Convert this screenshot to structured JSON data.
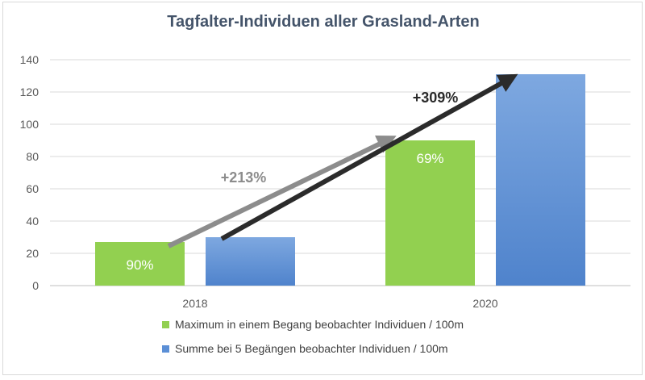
{
  "chart_data": {
    "type": "bar",
    "title": "Tagfalter-Individuen aller Grasland-Arten",
    "categories": [
      "2018",
      "2020"
    ],
    "ylim": [
      0,
      140
    ],
    "yticks": [
      0,
      20,
      40,
      60,
      80,
      100,
      120,
      140
    ],
    "grid": true,
    "legend_position": "bottom",
    "series": [
      {
        "name": "Maximum in einem Begang beobachter Individuen / 100m",
        "values": [
          27,
          90
        ],
        "bar_labels": [
          "90%",
          "69%"
        ],
        "color": "#92d050"
      },
      {
        "name": "Summe bei 5 Begängen beobachter Individuen / 100m",
        "values": [
          30,
          131
        ],
        "bar_labels": [
          "",
          ""
        ],
        "color": "#5b8fd6"
      }
    ],
    "annotations": [
      {
        "text": "+213%",
        "color": "#8c8c8c"
      },
      {
        "text": "+309%",
        "color": "#2b2b2b"
      }
    ]
  }
}
